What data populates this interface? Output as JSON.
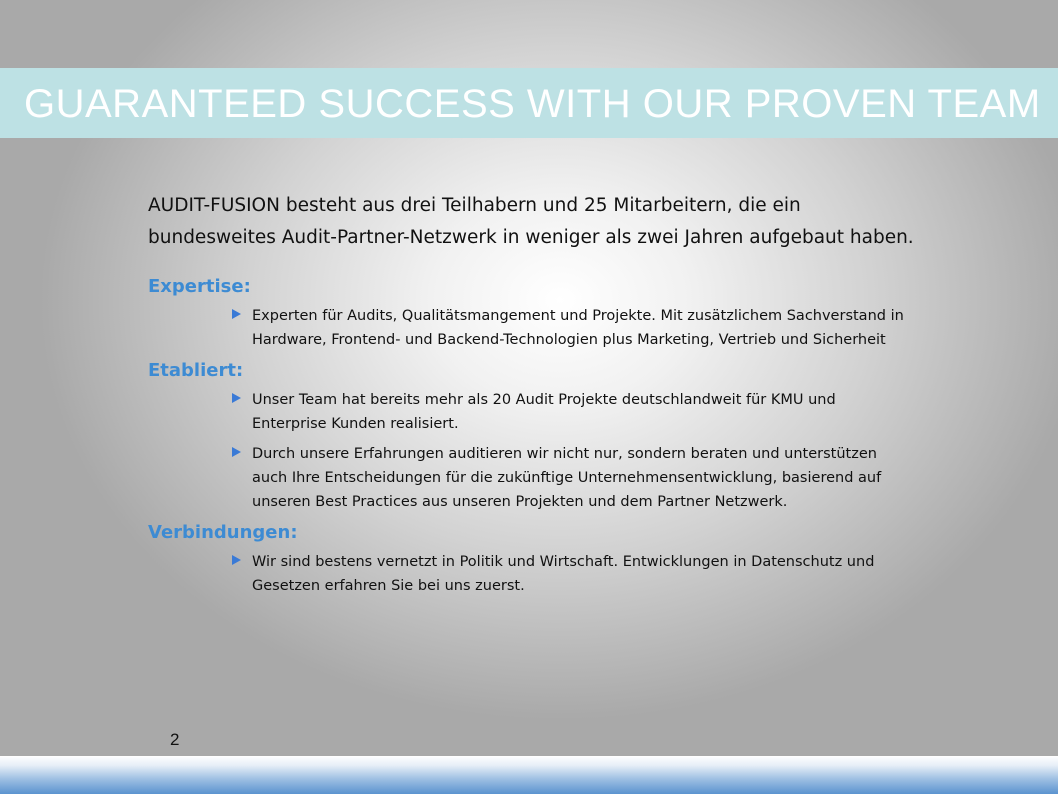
{
  "slide": {
    "title": "GUARANTEED SUCCESS WITH OUR PROVEN TEAM",
    "intro": "AUDIT-FUSION besteht aus drei Teilhabern und 25 Mitarbeitern, die ein bundesweites Audit-Partner-Netzwerk in weniger als zwei Jahren aufgebaut haben.",
    "sections": [
      {
        "heading": "Expertise:",
        "bullets": [
          "Experten für Audits, Qualitätsmangement und Projekte. Mit zusätzlichem Sachverstand in Hardware, Frontend- und Backend-Technologien plus Marketing, Vertrieb und Sicherheit"
        ]
      },
      {
        "heading": "Etabliert:",
        "bullets": [
          "Unser Team hat bereits mehr als 20 Audit Projekte deutschlandweit für KMU und Enterprise Kunden realisiert.",
          "Durch unsere Erfahrungen auditieren wir nicht nur, sondern beraten und unterstützen auch Ihre Entscheidungen für die zukünftige Unternehmensentwicklung, basierend auf unseren Best Practices aus unseren Projekten und dem Partner Netzwerk."
        ]
      },
      {
        "heading": "Verbindungen:",
        "bullets": [
          "Wir sind bestens vernetzt in Politik und Wirtschaft. Entwicklungen in Datenschutz und Gesetzen erfahren Sie bei uns zuerst."
        ]
      }
    ],
    "page_number": "2",
    "colors": {
      "title_bar": "#bde1e4",
      "heading": "#3d8bd3",
      "bullet_marker": "#3a7ad6"
    },
    "bullet_icon": "triangle-right-icon"
  }
}
